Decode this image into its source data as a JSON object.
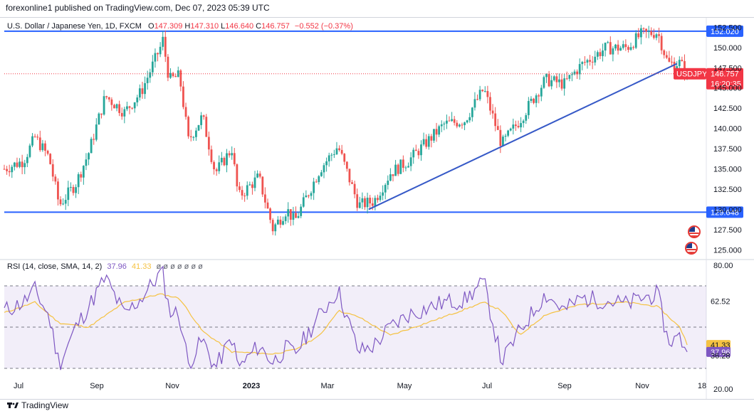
{
  "header": {
    "publisher": "forexonline1 published on TradingView.com, Dec 07, 2023 05:39 UTC"
  },
  "legend": {
    "symbol": "U.S. Dollar / Japanese Yen, 1D, FXCM",
    "open_label": "O",
    "open": "147.309",
    "high_label": "H",
    "high": "147.310",
    "low_label": "L",
    "low": "146.640",
    "close_label": "C",
    "close": "146.757",
    "change": "−0.552 (−0.37%)"
  },
  "rsi_legend": {
    "title": "RSI (14, close, SMA, 14, 2)",
    "rsi_value": "37.96",
    "sma_value": "41.33",
    "eye_icon": "ø ø ø ø ø ø ø"
  },
  "footer": {
    "brand": "TradingView"
  },
  "colors": {
    "up": "#26a69a",
    "down": "#ef5350",
    "hline": "#2962ff",
    "trendline": "#3659c7",
    "rsi": "#7e57c2",
    "rsi_sma": "#f5c242",
    "band": "rgba(126,87,194,0.10)",
    "price_tag": "#f23645",
    "level_tag": "#2962ff",
    "smiley": "#f5c242"
  },
  "chart_data": [
    {
      "type": "candlestick",
      "title": "U.S. Dollar / Japanese Yen, 1D, FXCM",
      "ylim": [
        124.5,
        153.5
      ],
      "y_ticks": [
        "125.000",
        "127.500",
        "130.000",
        "132.500",
        "135.000",
        "137.500",
        "140.000",
        "142.500",
        "145.000",
        "147.500",
        "150.000",
        "152.500"
      ],
      "x_ticks": [
        "Jul",
        "Sep",
        "Nov",
        "2023",
        "Mar",
        "May",
        "Jul",
        "Sep",
        "Nov",
        "18"
      ],
      "horizontal_levels": [
        {
          "label": "152.020",
          "value": 152.02
        },
        {
          "label": "129.648",
          "value": 129.648
        }
      ],
      "trendline": {
        "from": {
          "x": "2023-04-01",
          "y": 130.0
        },
        "to": {
          "x": "2023-11-28",
          "y": 148.0
        }
      },
      "last_price": {
        "symbol": "USDJPY",
        "value": "146.757",
        "countdown": "16:20:35",
        "level": 146.757
      },
      "price_path": [
        [
          "2022-06-20",
          135.0
        ],
        [
          "2022-07-05",
          136.0
        ],
        [
          "2022-07-14",
          138.9
        ],
        [
          "2022-07-25",
          136.4
        ],
        [
          "2022-08-02",
          130.5
        ],
        [
          "2022-08-15",
          133.2
        ],
        [
          "2022-08-25",
          137.0
        ],
        [
          "2022-09-07",
          144.0
        ],
        [
          "2022-09-22",
          142.0
        ],
        [
          "2022-10-05",
          144.5
        ],
        [
          "2022-10-20",
          150.0
        ],
        [
          "2022-10-21",
          151.9
        ],
        [
          "2022-10-27",
          146.0
        ],
        [
          "2022-11-04",
          146.5
        ],
        [
          "2022-11-11",
          138.5
        ],
        [
          "2022-11-22",
          141.5
        ],
        [
          "2022-12-02",
          134.5
        ],
        [
          "2022-12-15",
          137.5
        ],
        [
          "2022-12-20",
          131.5
        ],
        [
          "2023-01-05",
          134.0
        ],
        [
          "2023-01-16",
          127.6
        ],
        [
          "2023-01-27",
          130.0
        ],
        [
          "2023-02-02",
          128.5
        ],
        [
          "2023-02-22",
          135.0
        ],
        [
          "2023-03-08",
          137.8
        ],
        [
          "2023-03-24",
          130.5
        ],
        [
          "2023-04-05",
          131.0
        ],
        [
          "2023-04-18",
          134.5
        ],
        [
          "2023-05-02",
          136.0
        ],
        [
          "2023-05-30",
          140.5
        ],
        [
          "2023-06-15",
          141.0
        ],
        [
          "2023-06-30",
          144.9
        ],
        [
          "2023-07-14",
          138.0
        ],
        [
          "2023-07-28",
          141.0
        ],
        [
          "2023-08-17",
          146.0
        ],
        [
          "2023-09-01",
          145.5
        ],
        [
          "2023-09-14",
          147.8
        ],
        [
          "2023-10-03",
          149.9
        ],
        [
          "2023-10-20",
          150.0
        ],
        [
          "2023-10-31",
          151.6
        ],
        [
          "2023-11-13",
          151.9
        ],
        [
          "2023-11-21",
          148.0
        ],
        [
          "2023-11-30",
          148.1
        ],
        [
          "2023-12-07",
          146.757
        ]
      ]
    },
    {
      "type": "line",
      "title": "RSI (14, close, SMA, 14, 2)",
      "ylim": [
        20,
        80
      ],
      "y_ticks": [
        "20.00",
        "80.00"
      ],
      "bands": {
        "upper": 70,
        "lower": 30,
        "mid": 50
      },
      "marked_values": [
        {
          "label": "62.52",
          "value": 62.52
        },
        {
          "label": "41.33",
          "value": 41.33
        },
        {
          "label": "37.96",
          "value": 37.96
        },
        {
          "label": "36.28",
          "value": 36.28
        }
      ],
      "series": [
        {
          "name": "RSI",
          "values": [
            [
              "2022-06-20",
              58
            ],
            [
              "2022-07-05",
              62
            ],
            [
              "2022-07-14",
              68
            ],
            [
              "2022-07-25",
              55
            ],
            [
              "2022-08-02",
              32
            ],
            [
              "2022-08-15",
              50
            ],
            [
              "2022-08-25",
              60
            ],
            [
              "2022-09-07",
              74
            ],
            [
              "2022-09-22",
              56
            ],
            [
              "2022-10-05",
              64
            ],
            [
              "2022-10-20",
              76
            ],
            [
              "2022-10-21",
              79
            ],
            [
              "2022-10-27",
              58
            ],
            [
              "2022-11-04",
              56
            ],
            [
              "2022-11-11",
              32
            ],
            [
              "2022-11-22",
              44
            ],
            [
              "2022-12-02",
              30
            ],
            [
              "2022-12-15",
              45
            ],
            [
              "2022-12-20",
              30
            ],
            [
              "2023-01-05",
              41
            ],
            [
              "2023-01-16",
              33
            ],
            [
              "2023-01-27",
              40
            ],
            [
              "2023-02-02",
              37
            ],
            [
              "2023-02-22",
              56
            ],
            [
              "2023-03-08",
              68
            ],
            [
              "2023-03-24",
              38
            ],
            [
              "2023-04-05",
              41
            ],
            [
              "2023-04-18",
              50
            ],
            [
              "2023-05-02",
              56
            ],
            [
              "2023-05-30",
              62
            ],
            [
              "2023-06-15",
              63
            ],
            [
              "2023-06-30",
              72
            ],
            [
              "2023-07-14",
              33
            ],
            [
              "2023-07-28",
              48
            ],
            [
              "2023-08-17",
              66
            ],
            [
              "2023-09-01",
              58
            ],
            [
              "2023-09-14",
              64
            ],
            [
              "2023-10-03",
              63
            ],
            [
              "2023-10-20",
              61
            ],
            [
              "2023-10-31",
              64
            ],
            [
              "2023-11-13",
              66
            ],
            [
              "2023-11-21",
              43
            ],
            [
              "2023-11-30",
              45
            ],
            [
              "2023-12-07",
              37.96
            ]
          ]
        },
        {
          "name": "SMA",
          "values": [
            [
              "2022-06-20",
              57
            ],
            [
              "2022-07-14",
              62
            ],
            [
              "2022-08-02",
              52
            ],
            [
              "2022-08-25",
              50
            ],
            [
              "2022-09-22",
              62
            ],
            [
              "2022-10-20",
              66
            ],
            [
              "2022-11-04",
              64
            ],
            [
              "2022-11-22",
              48
            ],
            [
              "2022-12-15",
              38
            ],
            [
              "2023-01-16",
              37
            ],
            [
              "2023-02-02",
              39
            ],
            [
              "2023-02-22",
              46
            ],
            [
              "2023-03-08",
              58
            ],
            [
              "2023-03-24",
              55
            ],
            [
              "2023-04-18",
              46
            ],
            [
              "2023-05-30",
              55
            ],
            [
              "2023-06-30",
              62
            ],
            [
              "2023-07-14",
              58
            ],
            [
              "2023-07-28",
              46
            ],
            [
              "2023-08-17",
              56
            ],
            [
              "2023-09-14",
              61
            ],
            [
              "2023-10-20",
              62
            ],
            [
              "2023-11-13",
              60
            ],
            [
              "2023-11-30",
              50
            ],
            [
              "2023-12-07",
              41.33
            ]
          ]
        }
      ]
    }
  ]
}
